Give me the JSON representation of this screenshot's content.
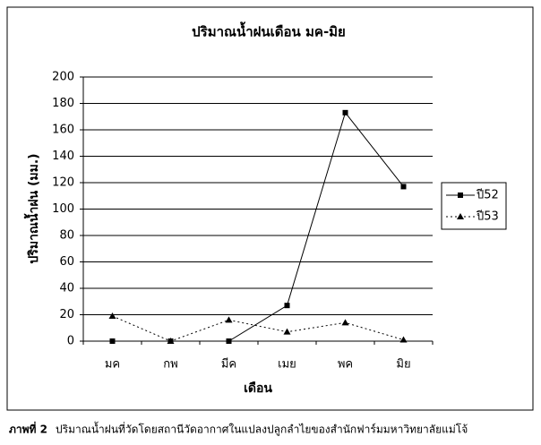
{
  "chart_data": {
    "type": "line",
    "title": "ปริมาณน้ำฝนเดือน มค-มิย",
    "x_label": "เดือน",
    "y_label": "ปริมาณน้ำฝน (มม.)",
    "categories": [
      "มค",
      "กพ",
      "มีค",
      "เมย",
      "พค",
      "มิย"
    ],
    "series": [
      {
        "name": "ปี52",
        "color": "#000000",
        "dash": "none",
        "marker": "square",
        "values": [
          0,
          0,
          0,
          27,
          173,
          117
        ]
      },
      {
        "name": "ปี53",
        "color": "#000000",
        "dash": "2,3",
        "marker": "triangle",
        "values": [
          19,
          0,
          16,
          7,
          14,
          1
        ]
      }
    ],
    "ylim": [
      0,
      200
    ],
    "yticks": [
      0,
      20,
      40,
      60,
      80,
      100,
      120,
      140,
      160,
      180,
      200
    ],
    "grid": true,
    "legend": "right"
  },
  "caption": {
    "label": "ภาพที่ 2",
    "text": "ปริมาณน้ำฝนที่วัดโดยสถานีวัดอากาศในแปลงปลูกลำไยของสำนักฟาร์มมหาวิทยาลัยแม่โจ้"
  }
}
